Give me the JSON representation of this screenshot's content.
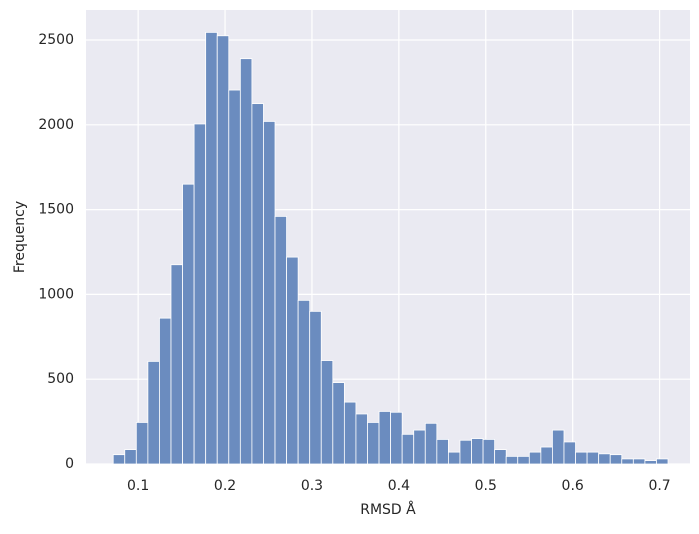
{
  "chart_data": {
    "type": "histogram",
    "xlabel": "RMSD Å",
    "ylabel": "Frequency",
    "bins": [
      0.0713,
      0.0846,
      0.0979,
      0.1112,
      0.1245,
      0.1378,
      0.1511,
      0.1644,
      0.1777,
      0.191,
      0.2043,
      0.2176,
      0.2309,
      0.2442,
      0.2575,
      0.2708,
      0.2841,
      0.2974,
      0.3107,
      0.324,
      0.3373,
      0.3506,
      0.3639,
      0.3772,
      0.3905,
      0.4038,
      0.4171,
      0.4304,
      0.4437,
      0.457,
      0.4703,
      0.4836,
      0.4969,
      0.5102,
      0.5235,
      0.5368,
      0.5501,
      0.5634,
      0.5767,
      0.59,
      0.6033,
      0.6166,
      0.6299,
      0.6432,
      0.6565,
      0.6698,
      0.6831,
      0.6964,
      0.7097
    ],
    "values": [
      55,
      85,
      245,
      605,
      860,
      1175,
      1650,
      2005,
      2545,
      2525,
      2205,
      2390,
      2125,
      2020,
      1460,
      1220,
      965,
      900,
      610,
      480,
      365,
      295,
      245,
      310,
      305,
      175,
      200,
      240,
      145,
      70,
      140,
      150,
      145,
      85,
      45,
      45,
      70,
      100,
      200,
      130,
      70,
      70,
      60,
      55,
      30,
      30,
      20,
      30
    ],
    "color": "#6b8cbf",
    "xlim": [
      0.04,
      0.735
    ],
    "ylim": [
      0,
      2677
    ],
    "xticks": [
      0.1,
      0.2,
      0.3,
      0.4,
      0.5,
      0.6,
      0.7
    ],
    "yticks": [
      0,
      500,
      1000,
      1500,
      2000,
      2500
    ],
    "grid": true
  }
}
